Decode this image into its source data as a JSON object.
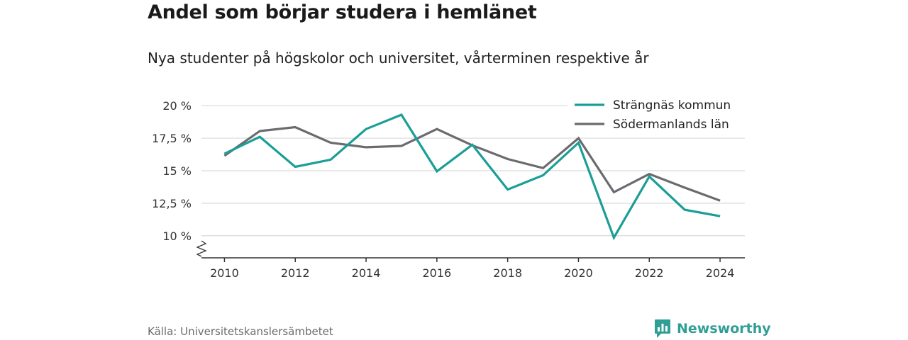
{
  "header": {
    "title": "Andel som börjar studera i hemlänet",
    "subtitle": "Nya studenter på högskolor och universitet, vårterminen respektive år"
  },
  "footer": {
    "source": "Källa: Universitetskanslersämbetet",
    "brand": "Newsworthy",
    "brand_icon": "newsworthy-logo-icon",
    "brand_color": "#2f9e95"
  },
  "chart_data": {
    "type": "line",
    "title": "Andel som börjar studera i hemlänet",
    "subtitle": "Nya studenter på högskolor och universitet, vårterminen respektive år",
    "xlabel": "",
    "ylabel": "",
    "x": [
      2010,
      2011,
      2012,
      2013,
      2014,
      2015,
      2016,
      2017,
      2018,
      2019,
      2020,
      2021,
      2022,
      2023,
      2024
    ],
    "x_ticks": [
      2010,
      2012,
      2014,
      2016,
      2018,
      2020,
      2022,
      2024
    ],
    "x_tick_labels": [
      "2010",
      "2012",
      "2014",
      "2016",
      "2018",
      "2020",
      "2022",
      "2024"
    ],
    "xlim": [
      2009.35,
      2024.7
    ],
    "y_ticks": [
      10,
      12.5,
      15,
      17.5,
      20
    ],
    "y_tick_labels": [
      "10 %",
      "12,5 %",
      "15 %",
      "17,5 %",
      "20 %"
    ],
    "ylim": [
      8.3,
      20.5
    ],
    "y_axis_break": true,
    "grid": "horizontal",
    "legend_position": "top-right",
    "series": [
      {
        "name": "Strängnäs kommun",
        "color": "#1a9e96",
        "values": [
          16.3,
          17.6,
          15.3,
          15.85,
          18.2,
          19.3,
          14.95,
          17.0,
          13.55,
          14.65,
          17.15,
          9.85,
          14.55,
          12.0,
          11.5
        ]
      },
      {
        "name": "Södermanlands län",
        "color": "#6b6a6f",
        "values": [
          16.15,
          18.05,
          18.35,
          17.15,
          16.8,
          16.9,
          18.2,
          16.95,
          15.9,
          15.2,
          17.5,
          13.35,
          14.75,
          13.7,
          12.7
        ]
      }
    ]
  }
}
